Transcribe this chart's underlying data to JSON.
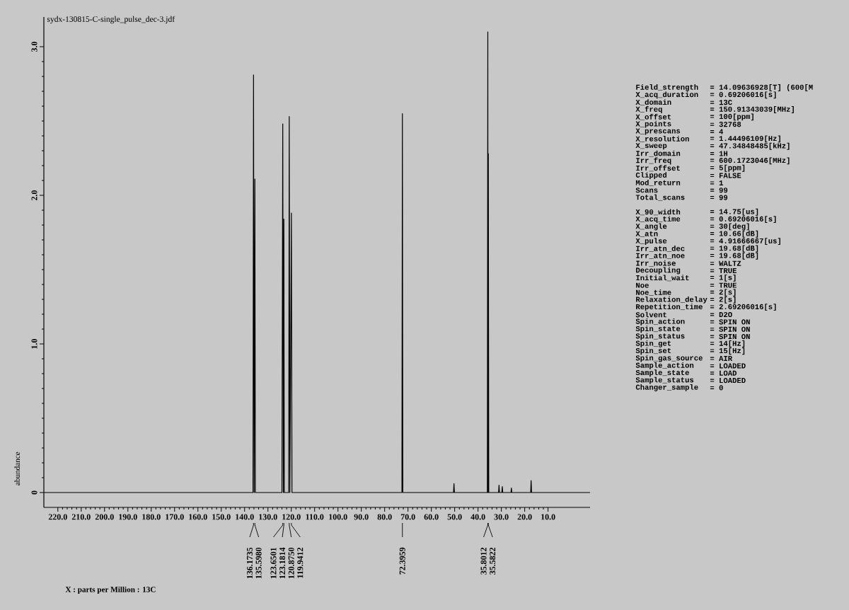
{
  "chart_data": {
    "type": "line",
    "title": "sydx-130815-C-single_pulse_dec-3.jdf",
    "ylabel": "abundance",
    "color": "#000000",
    "x": [
      226,
      180,
      140,
      136.4,
      136.1735,
      135.9,
      135.598,
      135.4,
      124.0,
      123.6501,
      123.4,
      123.1814,
      123.0,
      121.1,
      120.875,
      120.6,
      119.9412,
      119.7,
      100,
      72.6,
      72.3959,
      72.2,
      50.5,
      50.3,
      50.1,
      36.0,
      35.8012,
      35.7,
      35.5822,
      35.4,
      31.2,
      31.0,
      30.8,
      29.8,
      29.6,
      29.4,
      25.9,
      25.7,
      25.5,
      17.45,
      17.25,
      17.05,
      -8
    ],
    "values": [
      0,
      0,
      0,
      0,
      2.81,
      0,
      2.11,
      0,
      0,
      2.48,
      0,
      1.84,
      0,
      0,
      2.53,
      0,
      1.88,
      0,
      0,
      0,
      2.55,
      0,
      0,
      0.06,
      0,
      0,
      3.1,
      0,
      2.28,
      0,
      0,
      0.05,
      0,
      0,
      0.04,
      0,
      0,
      0.03,
      0,
      0,
      0.08,
      0,
      0
    ],
    "xlim": [
      226,
      -8
    ],
    "ylim": [
      -0.1,
      3.2
    ],
    "xticks": [
      {
        "value": 220,
        "label": "220.0"
      },
      {
        "value": 210,
        "label": "210.0"
      },
      {
        "value": 200,
        "label": "200.0"
      },
      {
        "value": 190,
        "label": "190.0"
      },
      {
        "value": 180,
        "label": "180.0"
      },
      {
        "value": 170,
        "label": "170.0"
      },
      {
        "value": 160,
        "label": "160.0"
      },
      {
        "value": 150,
        "label": "150.0"
      },
      {
        "value": 140,
        "label": "140.0"
      },
      {
        "value": 130,
        "label": "130.0"
      },
      {
        "value": 120,
        "label": "120.0"
      },
      {
        "value": 110,
        "label": "110.0"
      },
      {
        "value": 100,
        "label": "100.0"
      },
      {
        "value": 90,
        "label": "90.0"
      },
      {
        "value": 80,
        "label": "80.0"
      },
      {
        "value": 70,
        "label": "70.0"
      },
      {
        "value": 60,
        "label": "60.0"
      },
      {
        "value": 50,
        "label": "50.0"
      },
      {
        "value": 40,
        "label": "40.0"
      },
      {
        "value": 30,
        "label": "30.0"
      },
      {
        "value": 20,
        "label": "20.0"
      },
      {
        "value": 10,
        "label": "10.0"
      }
    ],
    "yticks": [
      0,
      {
        "value": 1,
        "label": "1.0"
      },
      {
        "value": 2,
        "label": "2.0"
      },
      {
        "value": 3,
        "label": "3.0"
      }
    ],
    "annotations": [
      "136.1735",
      "135.5980",
      "123.6501",
      "123.1814",
      "120.8750",
      "119.9412",
      "72.3959",
      "35.8012",
      "35.5822",
      "X : parts per Million : 13C",
      "Field_strength",
      "= 14.09636928[T] (600[M",
      "X_acq_duration",
      "= 0.69206016[s]",
      "X_domain",
      "= 13C",
      "X_freq",
      "= 150.91343039[MHz]",
      "X_offset",
      "= 100[ppm]",
      "X_points",
      "= 32768",
      "X_prescans",
      "= 4",
      "X_resolution",
      "= 1.44496109[Hz]",
      "X_sweep",
      "= 47.34848485[kHz]",
      "Irr_domain",
      "= 1H",
      "Irr_freq",
      "= 600.1723046[MHz]",
      "Irr_offset",
      "= 5[ppm]",
      "Clipped",
      "= FALSE",
      "Mod_return",
      "= 1",
      "Scans",
      "= 99",
      "Total_scans",
      "= 99",
      "X_90_width",
      "= 14.75[us]",
      "X_acq_time",
      "= 0.69206016[s]",
      "X_angle",
      "= 30[deg]",
      "X_atn",
      "= 10.66[dB]",
      "X_pulse",
      "= 4.91666667[us]",
      "Irr_atn_dec",
      "= 19.68[dB]",
      "Irr_atn_noe",
      "= 19.68[dB]",
      "Irr_noise",
      "= WALTZ",
      "Decoupling",
      "= TRUE",
      "Initial_wait",
      "= 1[s]",
      "Noe",
      "= TRUE",
      "Noe_time",
      "= 2[s]",
      "Relaxation_delay",
      "= 2[s]",
      "Repetition_time",
      "= 2.69206016[s]",
      "Solvent",
      "= D2O",
      "Spin_action",
      "= SPIN ON",
      "Spin_state",
      "= SPIN ON",
      "Spin_status",
      "= SPIN ON",
      "Spin_get",
      "= 14[Hz]",
      "Spin_set",
      "= 15[Hz]",
      "Spin_gas_source",
      "= AIR",
      "Sample_action",
      "= LOADED",
      "Sample_state",
      "= LOAD",
      "Sample_status",
      "= LOADED",
      "Changer_sample",
      "= 0"
    ]
  }
}
